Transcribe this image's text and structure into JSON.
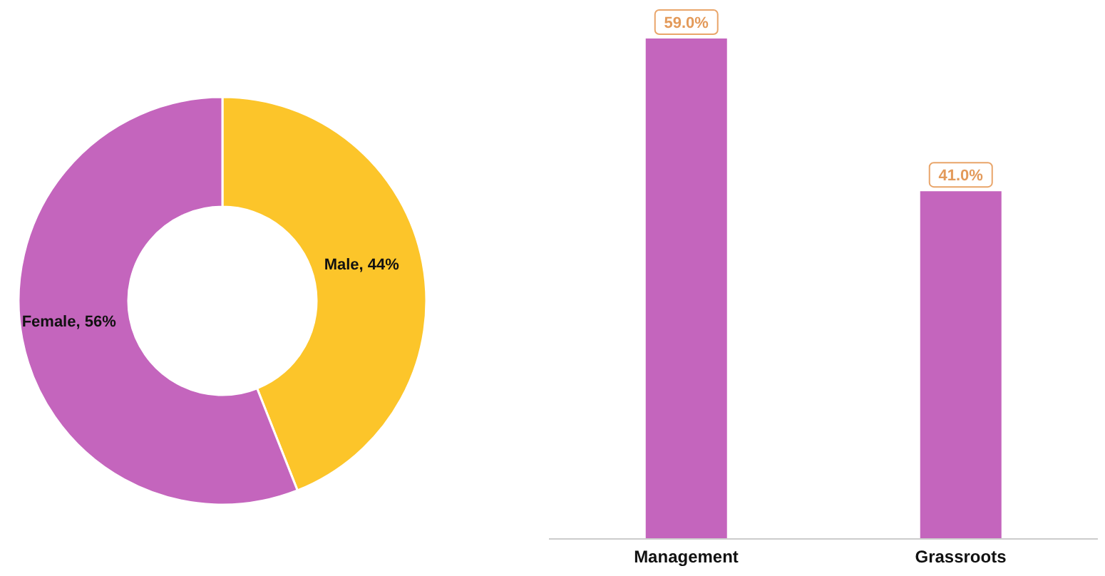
{
  "chart_data": [
    {
      "type": "donut",
      "categories": [
        "Male",
        "Female"
      ],
      "values": [
        44,
        56
      ],
      "value_labels": [
        "44%",
        "56%"
      ],
      "colors": [
        "#fcc52a",
        "#c465bd"
      ]
    },
    {
      "type": "bar",
      "categories": [
        "Management",
        "Grassroots"
      ],
      "values": [
        59,
        41
      ],
      "value_labels": [
        "59.0%",
        "41.0%"
      ],
      "color": "#c465bd"
    }
  ]
}
